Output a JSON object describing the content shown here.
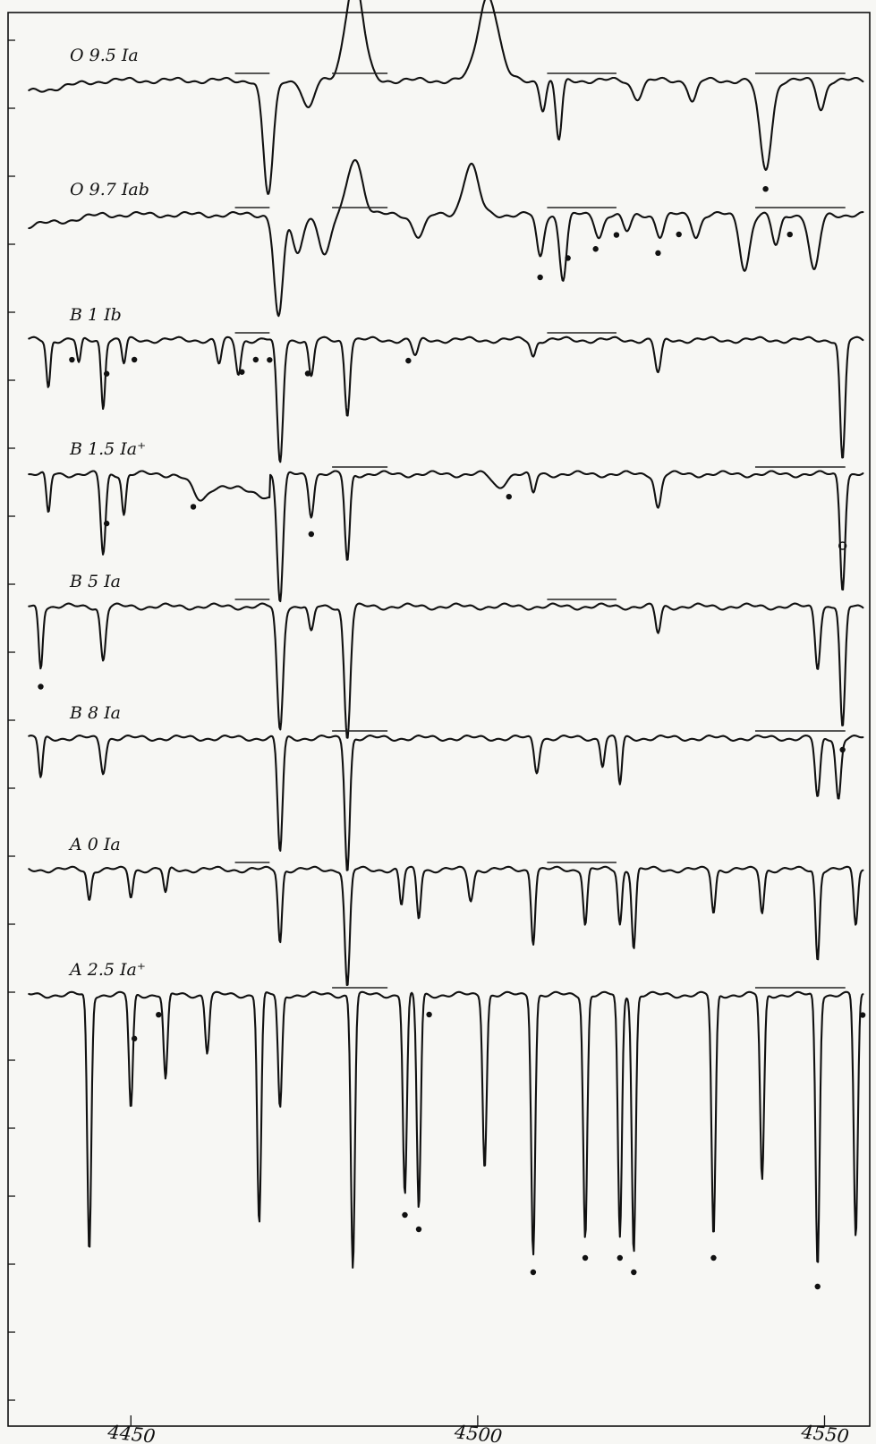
{
  "chart_data": {
    "type": "line",
    "title": "",
    "xlabel": "",
    "ylabel": "",
    "xlim": [
      4435,
      4556
    ],
    "x_ticks": [
      4450,
      4500,
      4550
    ],
    "grid": false,
    "series": [
      {
        "name": "O 9.5 Ia",
        "lines": [
          {
            "x": 4469.8,
            "depth": 0.8,
            "width": 1.0
          },
          {
            "x": 4475.6,
            "depth": 0.2,
            "width": 1.1
          },
          {
            "x": 4482.2,
            "depth": -0.7,
            "width": 1.8
          },
          {
            "x": 4501.5,
            "depth": -0.6,
            "width": 2.0
          },
          {
            "x": 4509.4,
            "depth": 0.2,
            "width": 0.6
          },
          {
            "x": 4511.7,
            "depth": 0.42,
            "width": 0.6
          },
          {
            "x": 4523.0,
            "depth": 0.12,
            "width": 1.0
          },
          {
            "x": 4531.0,
            "depth": 0.15,
            "width": 0.8
          },
          {
            "x": 4541.5,
            "depth": 0.62,
            "width": 1.2
          },
          {
            "x": 4549.5,
            "depth": 0.2,
            "width": 0.8
          }
        ],
        "dots": [
          4541.5
        ]
      },
      {
        "name": "O 9.7 Iab",
        "lines": [
          {
            "x": 4471.3,
            "depth": 0.72,
            "width": 0.9
          },
          {
            "x": 4474.0,
            "depth": 0.28,
            "width": 1.0
          },
          {
            "x": 4478.0,
            "depth": 0.28,
            "width": 1.2
          },
          {
            "x": 4482.3,
            "depth": -0.4,
            "width": 1.5
          },
          {
            "x": 4491.5,
            "depth": 0.15,
            "width": 1.2
          },
          {
            "x": 4499.0,
            "depth": -0.35,
            "width": 1.5
          },
          {
            "x": 4509.0,
            "depth": 0.3,
            "width": 0.7
          },
          {
            "x": 4512.3,
            "depth": 0.45,
            "width": 0.7
          },
          {
            "x": 4517.5,
            "depth": 0.15,
            "width": 0.8
          },
          {
            "x": 4521.5,
            "depth": 0.12,
            "width": 0.8
          },
          {
            "x": 4526.3,
            "depth": 0.15,
            "width": 0.8
          },
          {
            "x": 4531.5,
            "depth": 0.15,
            "width": 0.8
          },
          {
            "x": 4538.5,
            "depth": 0.38,
            "width": 1.0
          },
          {
            "x": 4543.0,
            "depth": 0.22,
            "width": 0.8
          },
          {
            "x": 4548.5,
            "depth": 0.4,
            "width": 1.0
          }
        ],
        "dots": [
          4509.0,
          4513.0,
          4517.0,
          4520.0,
          4526.0,
          4529.0,
          4545.0
        ]
      },
      {
        "name": "B 1 Ib",
        "lines": [
          {
            "x": 4438.1,
            "depth": 0.35,
            "width": 0.4
          },
          {
            "x": 4442.5,
            "depth": 0.18,
            "width": 0.4
          },
          {
            "x": 4446.0,
            "depth": 0.5,
            "width": 0.4
          },
          {
            "x": 4449.0,
            "depth": 0.18,
            "width": 0.4
          },
          {
            "x": 4462.7,
            "depth": 0.18,
            "width": 0.5
          },
          {
            "x": 4465.5,
            "depth": 0.25,
            "width": 0.5
          },
          {
            "x": 4471.5,
            "depth": 0.92,
            "width": 0.6
          },
          {
            "x": 4476.0,
            "depth": 0.28,
            "width": 0.5
          },
          {
            "x": 4481.2,
            "depth": 0.55,
            "width": 0.5
          },
          {
            "x": 4491.0,
            "depth": 0.12,
            "width": 0.6
          },
          {
            "x": 4508.0,
            "depth": 0.12,
            "width": 0.5
          },
          {
            "x": 4526.0,
            "depth": 0.25,
            "width": 0.6
          },
          {
            "x": 4552.6,
            "depth": 0.9,
            "width": 0.5
          }
        ],
        "dots": [
          4441.5,
          4446.5,
          4450.5,
          4466.0,
          4468.0,
          4470.0,
          4475.5,
          4490.0
        ]
      },
      {
        "name": "B 1.5 Ia⁺",
        "lines": [
          {
            "x": 4438.1,
            "depth": 0.3,
            "width": 0.4
          },
          {
            "x": 4446.0,
            "depth": 0.6,
            "width": 0.5
          },
          {
            "x": 4449.0,
            "depth": 0.3,
            "width": 0.4
          },
          {
            "x": 4460.0,
            "depth": 0.15,
            "width": 1.5
          },
          {
            "x": 4471.5,
            "depth": 0.95,
            "width": 0.6
          },
          {
            "x": 4476.0,
            "depth": 0.3,
            "width": 0.5
          },
          {
            "x": 4481.2,
            "depth": 0.65,
            "width": 0.5
          },
          {
            "x": 4503.0,
            "depth": 0.1,
            "width": 1.2
          },
          {
            "x": 4508.0,
            "depth": 0.15,
            "width": 0.5
          },
          {
            "x": 4526.0,
            "depth": 0.25,
            "width": 0.6
          },
          {
            "x": 4552.6,
            "depth": 0.85,
            "width": 0.5
          }
        ],
        "dots": [
          4446.5,
          4459.0,
          4476.0,
          4504.5
        ],
        "open_dots": [
          4552.6
        ]
      },
      {
        "name": "B 5 Ia",
        "lines": [
          {
            "x": 4437.0,
            "depth": 0.45,
            "width": 0.4
          },
          {
            "x": 4446.0,
            "depth": 0.4,
            "width": 0.5
          },
          {
            "x": 4471.5,
            "depth": 0.92,
            "width": 0.6
          },
          {
            "x": 4476.0,
            "depth": 0.2,
            "width": 0.5
          },
          {
            "x": 4481.2,
            "depth": 0.98,
            "width": 0.6
          },
          {
            "x": 4526.0,
            "depth": 0.2,
            "width": 0.5
          },
          {
            "x": 4549.0,
            "depth": 0.45,
            "width": 0.5
          },
          {
            "x": 4552.6,
            "depth": 0.92,
            "width": 0.5
          }
        ],
        "dots": [
          4437.0,
          4552.6
        ]
      },
      {
        "name": "B 8 Ia",
        "lines": [
          {
            "x": 4437.0,
            "depth": 0.3,
            "width": 0.4
          },
          {
            "x": 4446.0,
            "depth": 0.25,
            "width": 0.5
          },
          {
            "x": 4471.5,
            "depth": 0.85,
            "width": 0.5
          },
          {
            "x": 4481.2,
            "depth": 0.98,
            "width": 0.5
          },
          {
            "x": 4508.5,
            "depth": 0.25,
            "width": 0.5
          },
          {
            "x": 4518.0,
            "depth": 0.2,
            "width": 0.4
          },
          {
            "x": 4520.5,
            "depth": 0.35,
            "width": 0.4
          },
          {
            "x": 4549.0,
            "depth": 0.45,
            "width": 0.5
          },
          {
            "x": 4552.0,
            "depth": 0.45,
            "width": 0.5
          }
        ],
        "dots": []
      },
      {
        "name": "A 0 Ia",
        "lines": [
          {
            "x": 4444.0,
            "depth": 0.25,
            "width": 0.4
          },
          {
            "x": 4450.0,
            "depth": 0.22,
            "width": 0.4
          },
          {
            "x": 4455.0,
            "depth": 0.2,
            "width": 0.4
          },
          {
            "x": 4471.5,
            "depth": 0.6,
            "width": 0.4
          },
          {
            "x": 4481.2,
            "depth": 0.98,
            "width": 0.5
          },
          {
            "x": 4489.0,
            "depth": 0.3,
            "width": 0.4
          },
          {
            "x": 4491.5,
            "depth": 0.4,
            "width": 0.4
          },
          {
            "x": 4499.0,
            "depth": 0.25,
            "width": 0.5
          },
          {
            "x": 4508.0,
            "depth": 0.6,
            "width": 0.4
          },
          {
            "x": 4515.5,
            "depth": 0.45,
            "width": 0.4
          },
          {
            "x": 4520.5,
            "depth": 0.45,
            "width": 0.4
          },
          {
            "x": 4522.5,
            "depth": 0.65,
            "width": 0.4
          },
          {
            "x": 4534.0,
            "depth": 0.35,
            "width": 0.4
          },
          {
            "x": 4541.0,
            "depth": 0.35,
            "width": 0.4
          },
          {
            "x": 4549.0,
            "depth": 0.75,
            "width": 0.4
          },
          {
            "x": 4554.5,
            "depth": 0.45,
            "width": 0.4
          }
        ],
        "dots": []
      },
      {
        "name": "A 2.5 Ia⁺",
        "lines": [
          {
            "x": 4444.0,
            "depth": 0.9,
            "width": 0.4
          },
          {
            "x": 4450.0,
            "depth": 0.4,
            "width": 0.4
          },
          {
            "x": 4455.0,
            "depth": 0.3,
            "width": 0.4
          },
          {
            "x": 4461.0,
            "depth": 0.2,
            "width": 0.4
          },
          {
            "x": 4468.5,
            "depth": 0.8,
            "width": 0.4
          },
          {
            "x": 4471.5,
            "depth": 0.4,
            "width": 0.4
          },
          {
            "x": 4482.0,
            "depth": 0.95,
            "width": 0.4
          },
          {
            "x": 4489.5,
            "depth": 0.7,
            "width": 0.4
          },
          {
            "x": 4491.5,
            "depth": 0.75,
            "width": 0.4
          },
          {
            "x": 4501.0,
            "depth": 0.6,
            "width": 0.4
          },
          {
            "x": 4508.0,
            "depth": 0.9,
            "width": 0.4
          },
          {
            "x": 4515.5,
            "depth": 0.85,
            "width": 0.4
          },
          {
            "x": 4520.5,
            "depth": 0.85,
            "width": 0.4
          },
          {
            "x": 4522.5,
            "depth": 0.9,
            "width": 0.4
          },
          {
            "x": 4534.0,
            "depth": 0.85,
            "width": 0.4
          },
          {
            "x": 4541.0,
            "depth": 0.65,
            "width": 0.4
          },
          {
            "x": 4549.0,
            "depth": 0.95,
            "width": 0.4
          },
          {
            "x": 4554.5,
            "depth": 0.85,
            "width": 0.4
          }
        ],
        "dots": [
          4450.5,
          4454.0,
          4493.0,
          4489.5,
          4491.5,
          4508.0,
          4515.5,
          4520.5,
          4522.5,
          4534.0,
          4549.0,
          4555.5
        ]
      }
    ]
  }
}
